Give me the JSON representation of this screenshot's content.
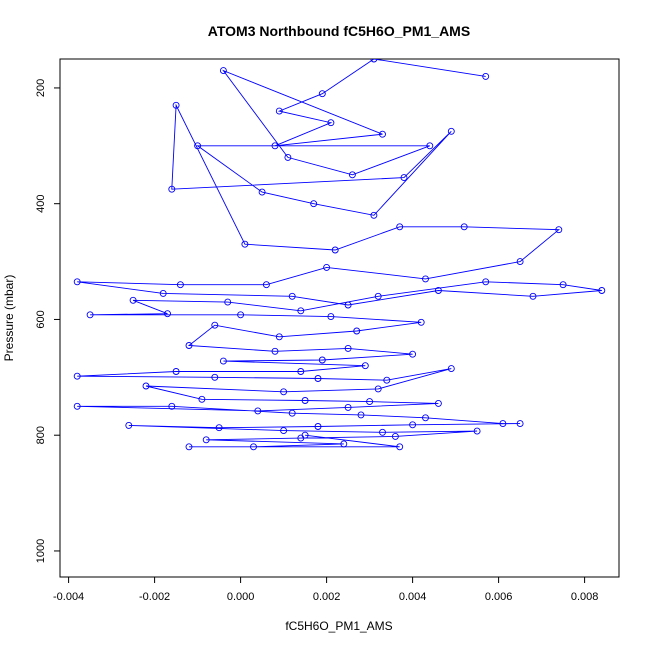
{
  "chart_data": {
    "type": "scatter",
    "title": "ATOM3 Northbound fC5H6O_PM1_AMS",
    "xlabel": "fC5H6O_PM1_AMS",
    "ylabel": "Pressure (mbar)",
    "xlim": [
      -0.0042,
      0.0088
    ],
    "ylim": [
      1045,
      150
    ],
    "y_reversed": true,
    "x_ticks": [
      {
        "value": -0.004,
        "label": "-0.004"
      },
      {
        "value": -0.002,
        "label": "-0.002"
      },
      {
        "value": 0.0,
        "label": "0.000"
      },
      {
        "value": 0.002,
        "label": "0.002"
      },
      {
        "value": 0.004,
        "label": "0.004"
      },
      {
        "value": 0.006,
        "label": "0.006"
      },
      {
        "value": 0.008,
        "label": "0.008"
      }
    ],
    "y_ticks": [
      {
        "value": 200,
        "label": "200"
      },
      {
        "value": 400,
        "label": "400"
      },
      {
        "value": 600,
        "label": "600"
      },
      {
        "value": 800,
        "label": "800"
      },
      {
        "value": 1000,
        "label": "1000"
      }
    ],
    "grid": false,
    "legend": "none",
    "series": [
      {
        "style": "points-and-lines",
        "color": "#0000ff",
        "points": [
          [
            0.0057,
            180
          ],
          [
            0.0031,
            150
          ],
          [
            0.0019,
            210
          ],
          [
            0.0009,
            240
          ],
          [
            0.0021,
            260
          ],
          [
            0.0008,
            300
          ],
          [
            0.0033,
            280
          ],
          [
            -0.0004,
            170
          ],
          [
            0.0011,
            320
          ],
          [
            0.0026,
            350
          ],
          [
            0.0044,
            300
          ],
          [
            -0.001,
            300
          ],
          [
            0.0005,
            380
          ],
          [
            0.0017,
            400
          ],
          [
            0.0031,
            420
          ],
          [
            0.0049,
            275
          ],
          [
            0.0038,
            355
          ],
          [
            -0.0016,
            375
          ],
          [
            -0.0015,
            230
          ],
          [
            0.0001,
            470
          ],
          [
            0.0022,
            480
          ],
          [
            0.0037,
            440
          ],
          [
            0.0052,
            440
          ],
          [
            0.0074,
            445
          ],
          [
            0.0065,
            500
          ],
          [
            0.0043,
            530
          ],
          [
            0.002,
            510
          ],
          [
            0.0006,
            540
          ],
          [
            -0.0014,
            540
          ],
          [
            -0.0038,
            535
          ],
          [
            -0.0018,
            555
          ],
          [
            0.0012,
            560
          ],
          [
            0.0025,
            575
          ],
          [
            0.0046,
            550
          ],
          [
            0.0068,
            560
          ],
          [
            0.0084,
            550
          ],
          [
            0.0075,
            540
          ],
          [
            0.0057,
            535
          ],
          [
            0.0032,
            560
          ],
          [
            0.0014,
            585
          ],
          [
            -0.0003,
            570
          ],
          [
            -0.0025,
            567
          ],
          [
            -0.0017,
            590
          ],
          [
            -0.0035,
            592
          ],
          [
            0.0,
            592
          ],
          [
            0.0021,
            595
          ],
          [
            0.0042,
            605
          ],
          [
            0.0027,
            620
          ],
          [
            0.0009,
            630
          ],
          [
            -0.0006,
            610
          ],
          [
            -0.0012,
            645
          ],
          [
            0.0008,
            655
          ],
          [
            0.0025,
            650
          ],
          [
            0.004,
            660
          ],
          [
            0.0019,
            670
          ],
          [
            -0.0004,
            672
          ],
          [
            0.0029,
            680
          ],
          [
            0.0014,
            690
          ],
          [
            -0.0015,
            690
          ],
          [
            -0.0038,
            698
          ],
          [
            -0.0006,
            700
          ],
          [
            0.0018,
            702
          ],
          [
            0.0034,
            705
          ],
          [
            0.0049,
            685
          ],
          [
            0.0032,
            720
          ],
          [
            0.001,
            725
          ],
          [
            -0.0022,
            715
          ],
          [
            -0.0009,
            738
          ],
          [
            0.0015,
            740
          ],
          [
            0.003,
            742
          ],
          [
            0.0046,
            745
          ],
          [
            0.0025,
            752
          ],
          [
            0.0004,
            758
          ],
          [
            -0.0038,
            750
          ],
          [
            -0.0016,
            750
          ],
          [
            0.0012,
            762
          ],
          [
            0.0028,
            765
          ],
          [
            0.0043,
            770
          ],
          [
            0.0061,
            780
          ],
          [
            0.0065,
            780
          ],
          [
            0.004,
            782
          ],
          [
            0.0018,
            785
          ],
          [
            -0.0005,
            787
          ],
          [
            -0.0026,
            783
          ],
          [
            0.001,
            792
          ],
          [
            0.0033,
            795
          ],
          [
            0.0055,
            793
          ],
          [
            0.0036,
            802
          ],
          [
            0.0014,
            805
          ],
          [
            -0.0008,
            808
          ],
          [
            0.0024,
            815
          ],
          [
            0.0003,
            820
          ],
          [
            -0.0012,
            820
          ],
          [
            0.0037,
            820
          ],
          [
            0.0015,
            800
          ]
        ]
      }
    ]
  }
}
